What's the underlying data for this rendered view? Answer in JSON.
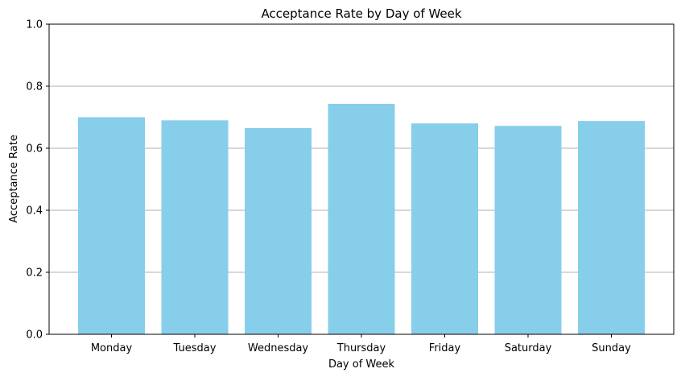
{
  "chart_data": {
    "type": "bar",
    "title": "Acceptance Rate by Day of Week",
    "xlabel": "Day of Week",
    "ylabel": "Acceptance Rate",
    "categories": [
      "Monday",
      "Tuesday",
      "Wednesday",
      "Thursday",
      "Friday",
      "Saturday",
      "Sunday"
    ],
    "values": [
      0.7,
      0.69,
      0.665,
      0.743,
      0.68,
      0.672,
      0.688
    ],
    "ylim": [
      0,
      1.0
    ],
    "yticks": [
      "0.0",
      "0.2",
      "0.4",
      "0.6",
      "0.8",
      "1.0"
    ],
    "grid": "y-axis only",
    "legend": "none",
    "bar_color": "#87ceeb",
    "grid_color": "#b0b0b0"
  }
}
